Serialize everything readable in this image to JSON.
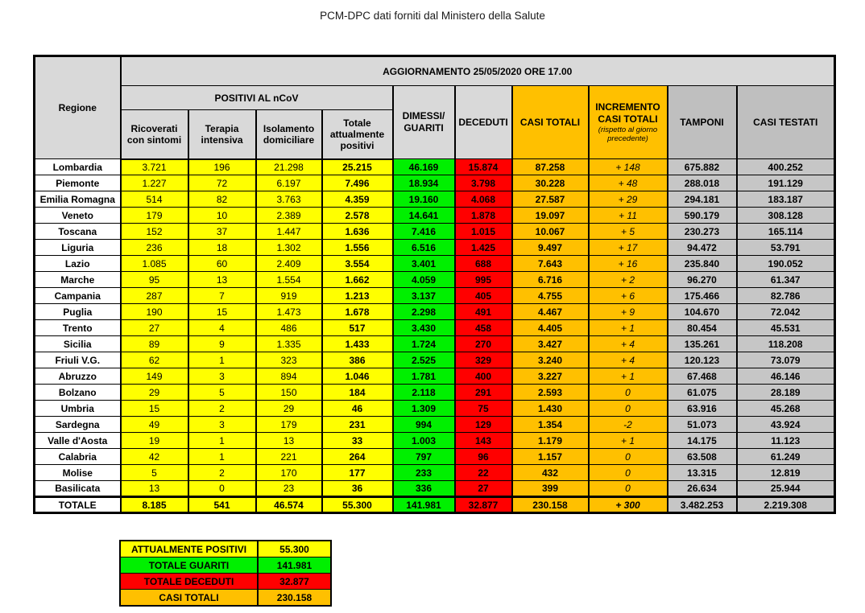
{
  "page_title": "PCM-DPC dati forniti dal Ministero della Salute",
  "colors": {
    "yellow": "#FFFF00",
    "green": "#00F000",
    "red": "#FF0000",
    "orange": "#FFC000",
    "hdr_gray": "#D9D9D9",
    "col_gray_header": "#BFBFBF",
    "col_gray": "#C6C6C6"
  },
  "table": {
    "headers": {
      "regione": "Regione",
      "aggiornamento": "AGGIORNAMENTO 25/05/2020 ORE 17.00",
      "positivi_group": "POSITIVI AL nCoV",
      "ricoverati": "Ricoverati con sintomi",
      "terapia": "Terapia intensiva",
      "isolamento": "Isolamento domiciliare",
      "totale_positivi": "Totale attualmente positivi",
      "dimessi": "DIMESSI/\nGUARITI",
      "deceduti": "DECEDUTI",
      "casi_totali": "CASI TOTALI",
      "incremento_title": "INCREMENTO\nCASI  TOTALI",
      "incremento_note": "(rispetto al giorno precedente)",
      "tamponi": "TAMPONI",
      "casi_testati": "CASI TESTATI"
    },
    "rows": [
      {
        "regione": "Lombardia",
        "values": [
          "3.721",
          "196",
          "21.298",
          "25.215",
          "46.169",
          "15.874",
          "87.258",
          "+ 148",
          "675.882",
          "400.252"
        ]
      },
      {
        "regione": "Piemonte",
        "values": [
          "1.227",
          "72",
          "6.197",
          "7.496",
          "18.934",
          "3.798",
          "30.228",
          "+ 48",
          "288.018",
          "191.129"
        ]
      },
      {
        "regione": "Emilia Romagna",
        "values": [
          "514",
          "82",
          "3.763",
          "4.359",
          "19.160",
          "4.068",
          "27.587",
          "+ 29",
          "294.181",
          "183.187"
        ]
      },
      {
        "regione": "Veneto",
        "values": [
          "179",
          "10",
          "2.389",
          "2.578",
          "14.641",
          "1.878",
          "19.097",
          "+ 11",
          "590.179",
          "308.128"
        ]
      },
      {
        "regione": "Toscana",
        "values": [
          "152",
          "37",
          "1.447",
          "1.636",
          "7.416",
          "1.015",
          "10.067",
          "+ 5",
          "230.273",
          "165.114"
        ]
      },
      {
        "regione": "Liguria",
        "values": [
          "236",
          "18",
          "1.302",
          "1.556",
          "6.516",
          "1.425",
          "9.497",
          "+ 17",
          "94.472",
          "53.791"
        ]
      },
      {
        "regione": "Lazio",
        "values": [
          "1.085",
          "60",
          "2.409",
          "3.554",
          "3.401",
          "688",
          "7.643",
          "+ 16",
          "235.840",
          "190.052"
        ]
      },
      {
        "regione": "Marche",
        "values": [
          "95",
          "13",
          "1.554",
          "1.662",
          "4.059",
          "995",
          "6.716",
          "+ 2",
          "96.270",
          "61.347"
        ]
      },
      {
        "regione": "Campania",
        "values": [
          "287",
          "7",
          "919",
          "1.213",
          "3.137",
          "405",
          "4.755",
          "+ 6",
          "175.466",
          "82.786"
        ]
      },
      {
        "regione": "Puglia",
        "values": [
          "190",
          "15",
          "1.473",
          "1.678",
          "2.298",
          "491",
          "4.467",
          "+ 9",
          "104.670",
          "72.042"
        ]
      },
      {
        "regione": "Trento",
        "values": [
          "27",
          "4",
          "486",
          "517",
          "3.430",
          "458",
          "4.405",
          "+ 1",
          "80.454",
          "45.531"
        ]
      },
      {
        "regione": "Sicilia",
        "values": [
          "89",
          "9",
          "1.335",
          "1.433",
          "1.724",
          "270",
          "3.427",
          "+ 4",
          "135.261",
          "118.208"
        ]
      },
      {
        "regione": "Friuli V.G.",
        "values": [
          "62",
          "1",
          "323",
          "386",
          "2.525",
          "329",
          "3.240",
          "+ 4",
          "120.123",
          "73.079"
        ]
      },
      {
        "regione": "Abruzzo",
        "values": [
          "149",
          "3",
          "894",
          "1.046",
          "1.781",
          "400",
          "3.227",
          "+ 1",
          "67.468",
          "46.146"
        ]
      },
      {
        "regione": "Bolzano",
        "values": [
          "29",
          "5",
          "150",
          "184",
          "2.118",
          "291",
          "2.593",
          "0",
          "61.075",
          "28.189"
        ]
      },
      {
        "regione": "Umbria",
        "values": [
          "15",
          "2",
          "29",
          "46",
          "1.309",
          "75",
          "1.430",
          "0",
          "63.916",
          "45.268"
        ]
      },
      {
        "regione": "Sardegna",
        "values": [
          "49",
          "3",
          "179",
          "231",
          "994",
          "129",
          "1.354",
          "-2",
          "51.073",
          "43.924"
        ]
      },
      {
        "regione": "Valle d'Aosta",
        "values": [
          "19",
          "1",
          "13",
          "33",
          "1.003",
          "143",
          "1.179",
          "+ 1",
          "14.175",
          "11.123"
        ]
      },
      {
        "regione": "Calabria",
        "values": [
          "42",
          "1",
          "221",
          "264",
          "797",
          "96",
          "1.157",
          "0",
          "63.508",
          "61.249"
        ]
      },
      {
        "regione": "Molise",
        "values": [
          "5",
          "2",
          "170",
          "177",
          "233",
          "22",
          "432",
          "0",
          "13.315",
          "12.819"
        ]
      },
      {
        "regione": "Basilicata",
        "values": [
          "13",
          "0",
          "23",
          "36",
          "336",
          "27",
          "399",
          "0",
          "26.634",
          "25.944"
        ]
      },
      {
        "regione": "TOTALE",
        "is_total": true,
        "values": [
          "8.185",
          "541",
          "46.574",
          "55.300",
          "141.981",
          "32.877",
          "230.158",
          "+ 300",
          "3.482.253",
          "2.219.308"
        ]
      }
    ]
  },
  "summary": {
    "rows": [
      {
        "label": "ATTUALMENTE POSITIVI",
        "value": "55.300",
        "color_key": "yellow"
      },
      {
        "label": "TOTALE GUARITI",
        "value": "141.981",
        "color_key": "green"
      },
      {
        "label": "TOTALE DECEDUTI",
        "value": "32.877",
        "color_key": "red"
      },
      {
        "label": "CASI TOTALI",
        "value": "230.158",
        "color_key": "orange"
      }
    ]
  }
}
